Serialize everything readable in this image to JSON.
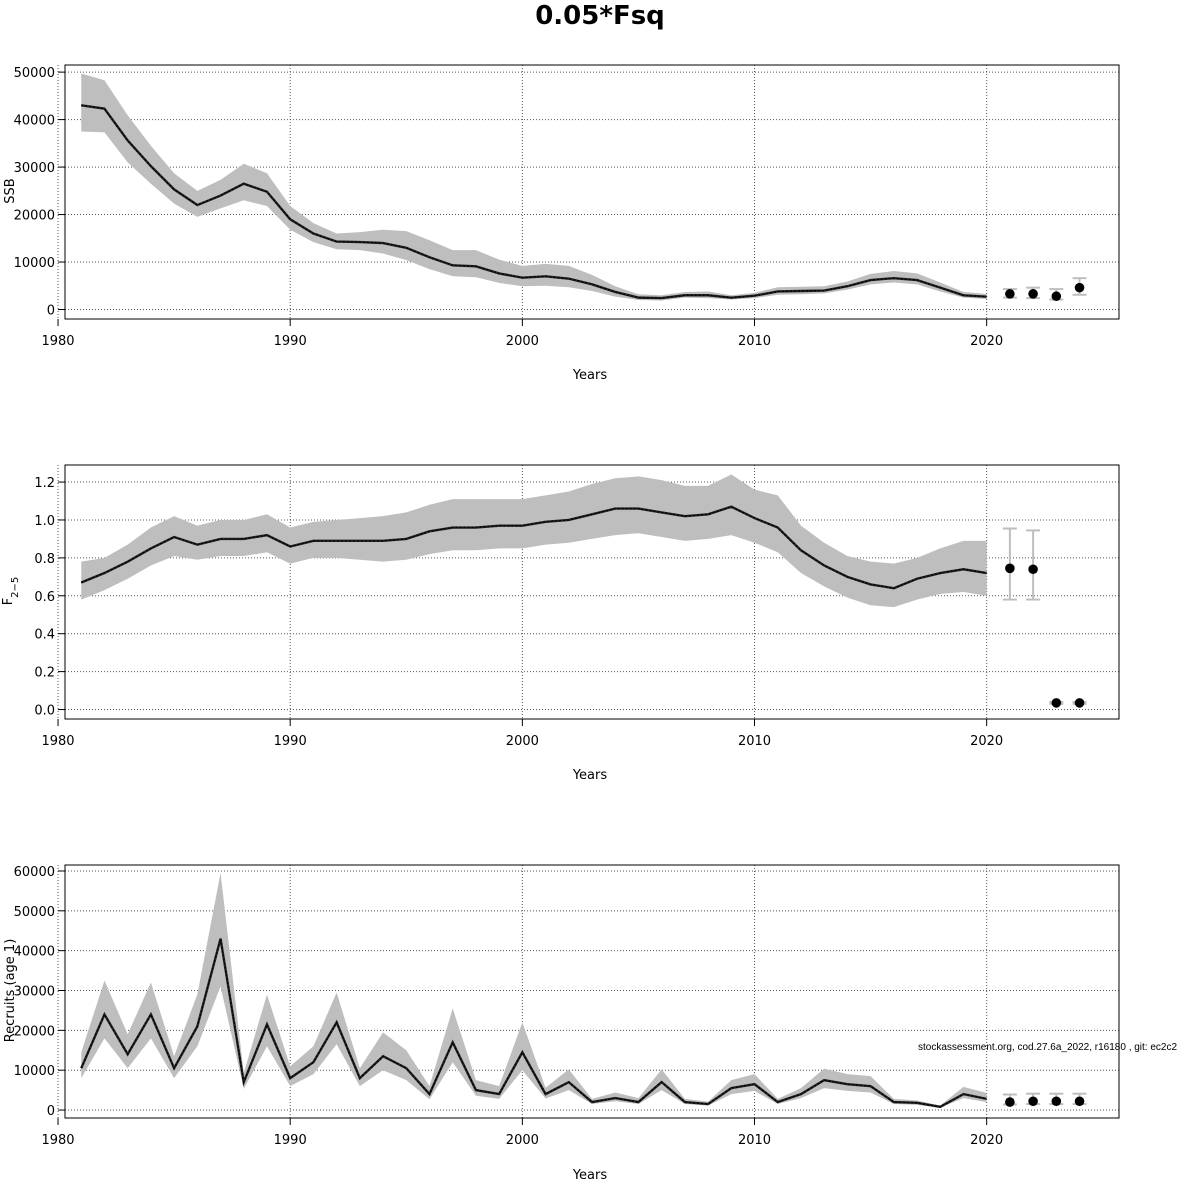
{
  "title": "0.05*Fsq",
  "annotation": "stockassessment.org, cod.27.6a_2022, r16180 , git: ec2c2",
  "colors": {
    "band": "#bebebe",
    "line": "#000000",
    "errorbar": "#bebebe",
    "grid": "#555555"
  },
  "chart_data": [
    {
      "type": "line",
      "xlabel": "Years",
      "ylabel": "SSB",
      "xlim": [
        1980.3,
        2025.7
      ],
      "ylim": [
        -2000,
        51500
      ],
      "xticks": [
        1980,
        1990,
        2000,
        2010,
        2020
      ],
      "yticks": [
        0,
        10000,
        20000,
        30000,
        40000,
        50000
      ],
      "grid": true,
      "x": [
        1981,
        1982,
        1983,
        1984,
        1985,
        1986,
        1987,
        1988,
        1989,
        1990,
        1991,
        1992,
        1993,
        1994,
        1995,
        1996,
        1997,
        1998,
        1999,
        2000,
        2001,
        2002,
        2003,
        2004,
        2005,
        2006,
        2007,
        2008,
        2009,
        2010,
        2011,
        2012,
        2013,
        2014,
        2015,
        2016,
        2017,
        2018,
        2019,
        2020
      ],
      "estimate": [
        43000,
        42300,
        35600,
        30200,
        25300,
        22000,
        24000,
        26500,
        24800,
        19000,
        16000,
        14300,
        14200,
        14000,
        13000,
        11000,
        9300,
        9100,
        7600,
        6700,
        7000,
        6500,
        5300,
        3700,
        2500,
        2400,
        3000,
        3000,
        2500,
        2900,
        3800,
        3900,
        4000,
        4900,
        6200,
        6600,
        6200,
        4600,
        3000,
        2700
      ],
      "lower": [
        37500,
        37300,
        31000,
        26500,
        22300,
        19500,
        21300,
        23000,
        21800,
        16800,
        14200,
        12700,
        12500,
        11800,
        10400,
        8500,
        7000,
        6800,
        5600,
        4900,
        5000,
        4700,
        3900,
        2700,
        2000,
        1900,
        2500,
        2400,
        2100,
        2400,
        3100,
        3200,
        3400,
        4200,
        5300,
        5700,
        5300,
        3800,
        2500,
        2200
      ],
      "upper": [
        49700,
        48300,
        40900,
        34500,
        28700,
        25000,
        27300,
        30700,
        28700,
        21800,
        18200,
        16000,
        16300,
        16800,
        16500,
        14600,
        12500,
        12500,
        10500,
        9200,
        9600,
        9200,
        7300,
        4900,
        3200,
        3000,
        3700,
        3800,
        3000,
        3500,
        4700,
        4800,
        4900,
        5900,
        7500,
        8100,
        7600,
        5700,
        3700,
        3300
      ],
      "projection": {
        "x": [
          2021,
          2022,
          2023,
          2024
        ],
        "estimate": [
          3300,
          3300,
          2800,
          4600
        ],
        "lower": [
          2500,
          2400,
          2100,
          3100
        ],
        "upper": [
          4300,
          4600,
          4300,
          6600
        ]
      }
    },
    {
      "type": "line",
      "xlabel": "Years",
      "ylabel": "F",
      "ylabel_subscript": "2−5",
      "xlim": [
        1980.3,
        2025.7
      ],
      "ylim": [
        -0.05,
        1.29
      ],
      "xticks": [
        1980,
        1990,
        2000,
        2010,
        2020
      ],
      "yticks": [
        0.0,
        0.2,
        0.4,
        0.6,
        0.8,
        1.0,
        1.2
      ],
      "ytick_labels": [
        "0.0",
        "0.2",
        "0.4",
        "0.6",
        "0.8",
        "1.0",
        "1.2"
      ],
      "grid": true,
      "x": [
        1981,
        1982,
        1983,
        1984,
        1985,
        1986,
        1987,
        1988,
        1989,
        1990,
        1991,
        1992,
        1993,
        1994,
        1995,
        1996,
        1997,
        1998,
        1999,
        2000,
        2001,
        2002,
        2003,
        2004,
        2005,
        2006,
        2007,
        2008,
        2009,
        2010,
        2011,
        2012,
        2013,
        2014,
        2015,
        2016,
        2017,
        2018,
        2019,
        2020
      ],
      "estimate": [
        0.67,
        0.72,
        0.78,
        0.85,
        0.91,
        0.87,
        0.9,
        0.9,
        0.92,
        0.86,
        0.89,
        0.89,
        0.89,
        0.89,
        0.9,
        0.94,
        0.96,
        0.96,
        0.97,
        0.97,
        0.99,
        1.0,
        1.03,
        1.06,
        1.06,
        1.04,
        1.02,
        1.03,
        1.07,
        1.01,
        0.96,
        0.84,
        0.76,
        0.7,
        0.66,
        0.64,
        0.69,
        0.72,
        0.74,
        0.72
      ],
      "lower": [
        0.58,
        0.63,
        0.69,
        0.76,
        0.81,
        0.79,
        0.81,
        0.81,
        0.83,
        0.77,
        0.8,
        0.8,
        0.79,
        0.78,
        0.79,
        0.82,
        0.84,
        0.84,
        0.85,
        0.85,
        0.87,
        0.88,
        0.9,
        0.92,
        0.93,
        0.91,
        0.89,
        0.9,
        0.92,
        0.88,
        0.83,
        0.72,
        0.65,
        0.59,
        0.55,
        0.54,
        0.58,
        0.61,
        0.62,
        0.6
      ],
      "upper": [
        0.78,
        0.8,
        0.87,
        0.96,
        1.02,
        0.97,
        1.0,
        1.0,
        1.03,
        0.96,
        0.99,
        1.0,
        1.01,
        1.02,
        1.04,
        1.08,
        1.11,
        1.11,
        1.11,
        1.11,
        1.13,
        1.15,
        1.19,
        1.22,
        1.23,
        1.21,
        1.18,
        1.18,
        1.24,
        1.16,
        1.13,
        0.97,
        0.88,
        0.81,
        0.78,
        0.77,
        0.8,
        0.85,
        0.89,
        0.89
      ],
      "projection": {
        "x": [
          2021,
          2022,
          2023,
          2024
        ],
        "estimate": [
          0.745,
          0.74,
          0.035,
          0.035
        ],
        "lower": [
          0.58,
          0.58,
          0.03,
          0.03
        ],
        "upper": [
          0.955,
          0.945,
          0.04,
          0.04
        ]
      }
    },
    {
      "type": "line",
      "xlabel": "Years",
      "ylabel": "Recruits (age 1)",
      "xlim": [
        1980.3,
        2025.7
      ],
      "ylim": [
        -2000,
        61500
      ],
      "xticks": [
        1980,
        1990,
        2000,
        2010,
        2020
      ],
      "yticks": [
        0,
        10000,
        20000,
        30000,
        40000,
        50000,
        60000
      ],
      "grid": true,
      "x": [
        1981,
        1982,
        1983,
        1984,
        1985,
        1986,
        1987,
        1988,
        1989,
        1990,
        1991,
        1992,
        1993,
        1994,
        1995,
        1996,
        1997,
        1998,
        1999,
        2000,
        2001,
        2002,
        2003,
        2004,
        2005,
        2006,
        2007,
        2008,
        2009,
        2010,
        2011,
        2012,
        2013,
        2014,
        2015,
        2016,
        2017,
        2018,
        2019,
        2020
      ],
      "estimate": [
        10500,
        24000,
        14000,
        24000,
        10500,
        21000,
        43000,
        7000,
        21500,
        8000,
        12000,
        22000,
        8000,
        13500,
        10500,
        4000,
        17000,
        5000,
        4000,
        14500,
        4000,
        7000,
        2000,
        3000,
        2000,
        7000,
        2000,
        1500,
        5500,
        6500,
        2000,
        4000,
        7500,
        6500,
        6000,
        2000,
        1800,
        800,
        4000,
        2800
      ],
      "lower": [
        8000,
        18000,
        10500,
        18000,
        8000,
        16000,
        31000,
        5300,
        16000,
        6000,
        9000,
        16500,
        6000,
        10000,
        7500,
        2700,
        12000,
        3600,
        2800,
        10000,
        2900,
        5000,
        1500,
        2200,
        1500,
        5000,
        1500,
        1100,
        4000,
        4800,
        1500,
        3000,
        5500,
        4800,
        4400,
        1500,
        1300,
        600,
        3000,
        2000
      ],
      "upper": [
        14500,
        32500,
        19000,
        32000,
        13500,
        29000,
        59500,
        9300,
        29000,
        11000,
        16000,
        29500,
        10500,
        19500,
        15000,
        6000,
        25500,
        7500,
        6000,
        22000,
        5600,
        10200,
        2800,
        4400,
        3000,
        10200,
        2800,
        2100,
        7500,
        9000,
        2800,
        5500,
        10400,
        9000,
        8500,
        2800,
        2400,
        1100,
        5800,
        4300
      ],
      "projection": {
        "x": [
          2021,
          2022,
          2023,
          2024
        ],
        "estimate": [
          2000,
          2200,
          2200,
          2200
        ],
        "lower": [
          1400,
          1500,
          1500,
          1500
        ],
        "upper": [
          3900,
          4100,
          4100,
          4100
        ]
      }
    }
  ]
}
